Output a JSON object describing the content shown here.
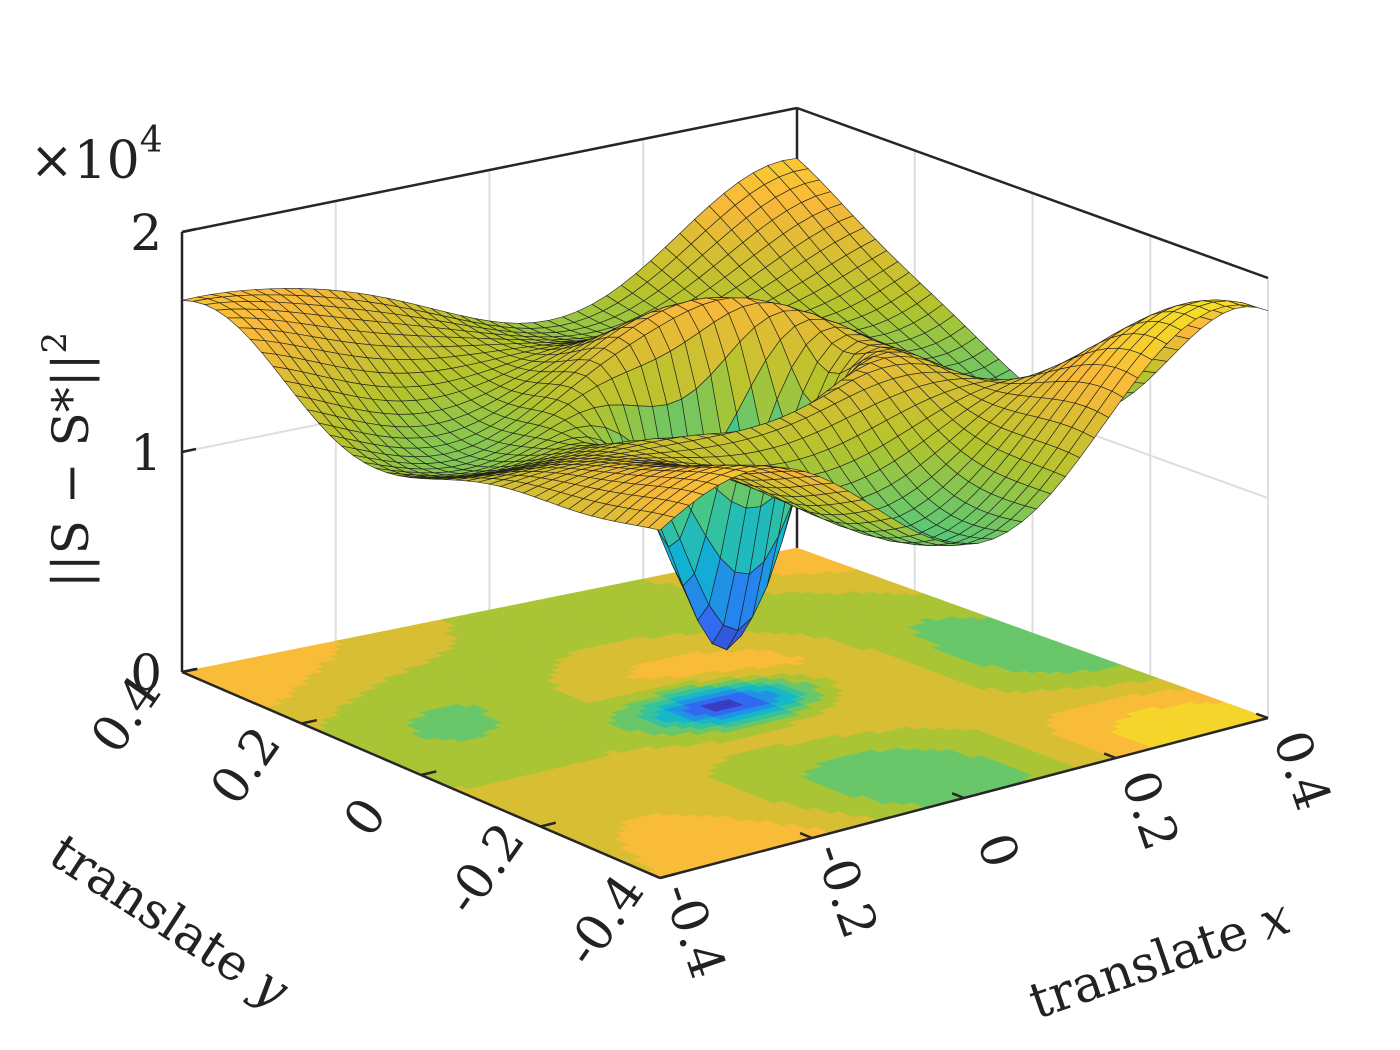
{
  "chart_data": {
    "type": "surface",
    "zlabel": "||S − S*||",
    "zlabel_power": "2",
    "zscale": {
      "base": "×10",
      "exponent": "4"
    },
    "xlabel": {
      "prefix": "translate ",
      "variable": "x"
    },
    "ylabel": {
      "prefix": "translate ",
      "variable": "y"
    },
    "xlim": [
      -0.4,
      0.4
    ],
    "ylim": [
      -0.4,
      0.4
    ],
    "zlim": [
      0,
      2
    ],
    "x_ticks": [
      "-0.4",
      "-0.2",
      "0",
      "0.2",
      "0.4"
    ],
    "y_ticks": [
      "-0.4",
      "-0.2",
      "0",
      "0.2",
      "0.4"
    ],
    "z_ticks": [
      "0",
      "1",
      "2"
    ],
    "grid": true,
    "contour_floor": true,
    "colormap": "parula",
    "colormap_stops": [
      "#3e26a8",
      "#2f71f9",
      "#10b5d0",
      "#49c884",
      "#b4c42c",
      "#f9b83a",
      "#f5e124"
    ],
    "z_min": 0.12,
    "z_max": 1.95,
    "minimum": {
      "x": 0.0,
      "y": 0.0,
      "z": 0.12
    }
  }
}
